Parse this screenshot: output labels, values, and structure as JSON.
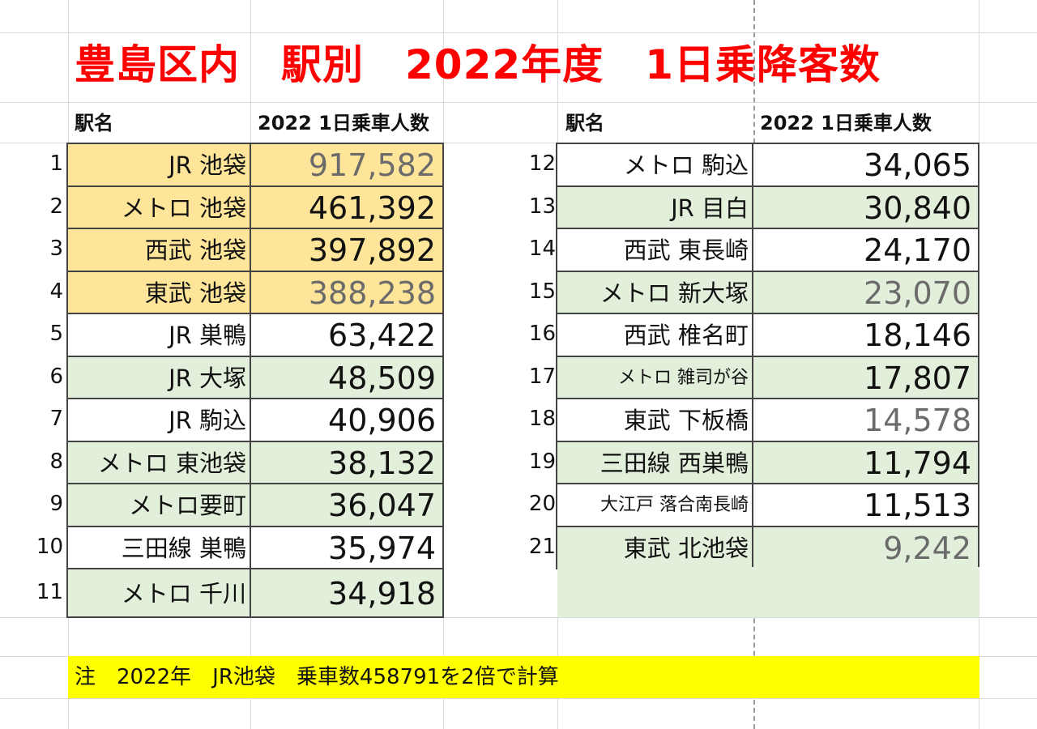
{
  "title": "豊島区内　駅別　2022年度　1日乗降客数",
  "headers": {
    "left_name": "駅名",
    "left_value": "2022 1日乗車人数",
    "right_name": "駅名",
    "right_value": "2022 1日乗車人数"
  },
  "left_rows": [
    {
      "rank": "1",
      "station": "JR 池袋",
      "value": "917,582",
      "fill": "orange"
    },
    {
      "rank": "2",
      "station": "メトロ 池袋",
      "value": "461,392",
      "fill": "orange"
    },
    {
      "rank": "3",
      "station": "西武 池袋",
      "value": "397,892",
      "fill": "orange"
    },
    {
      "rank": "4",
      "station": "東武 池袋",
      "value": "388,238",
      "fill": "orange"
    },
    {
      "rank": "5",
      "station": "JR 巣鴨",
      "value": "63,422",
      "fill": "white"
    },
    {
      "rank": "6",
      "station": "JR 大塚",
      "value": "48,509",
      "fill": "green"
    },
    {
      "rank": "7",
      "station": "JR 駒込",
      "value": "40,906",
      "fill": "white"
    },
    {
      "rank": "8",
      "station": "メトロ 東池袋",
      "value": "38,132",
      "fill": "green"
    },
    {
      "rank": "9",
      "station": "メトロ要町",
      "value": "36,047",
      "fill": "green"
    },
    {
      "rank": "10",
      "station": "三田線 巣鴨",
      "value": "35,974",
      "fill": "white"
    },
    {
      "rank": "11",
      "station": "メトロ 千川",
      "value": "34,918",
      "fill": "green"
    }
  ],
  "right_rows": [
    {
      "rank": "12",
      "station": "メトロ 駒込",
      "value": "34,065",
      "fill": "white"
    },
    {
      "rank": "13",
      "station": "JR 目白",
      "value": "30,840",
      "fill": "green"
    },
    {
      "rank": "14",
      "station": "西武 東長崎",
      "value": "24,170",
      "fill": "white"
    },
    {
      "rank": "15",
      "station": "メトロ 新大塚",
      "value": "23,070",
      "fill": "green"
    },
    {
      "rank": "16",
      "station": "西武 椎名町",
      "value": "18,146",
      "fill": "white"
    },
    {
      "rank": "17",
      "station": "メトロ 雑司が谷",
      "value": "17,807",
      "fill": "green"
    },
    {
      "rank": "18",
      "station": "東武 下板橋",
      "value": "14,578",
      "fill": "white"
    },
    {
      "rank": "19",
      "station": "三田線 西巣鴨",
      "value": "11,794",
      "fill": "green"
    },
    {
      "rank": "20",
      "station": "大江戸 落合南長崎",
      "value": "11,513",
      "fill": "white"
    },
    {
      "rank": "21",
      "station": "東武 北池袋",
      "value": "9,242",
      "fill": "green"
    }
  ],
  "note": "注　2022年　JR池袋　乗車数458791を2倍で計算",
  "colors": {
    "title": "#ff0000",
    "highlight_top4": "#ffe599",
    "band_green": "#e2efda",
    "note_bg": "#ffff00"
  }
}
